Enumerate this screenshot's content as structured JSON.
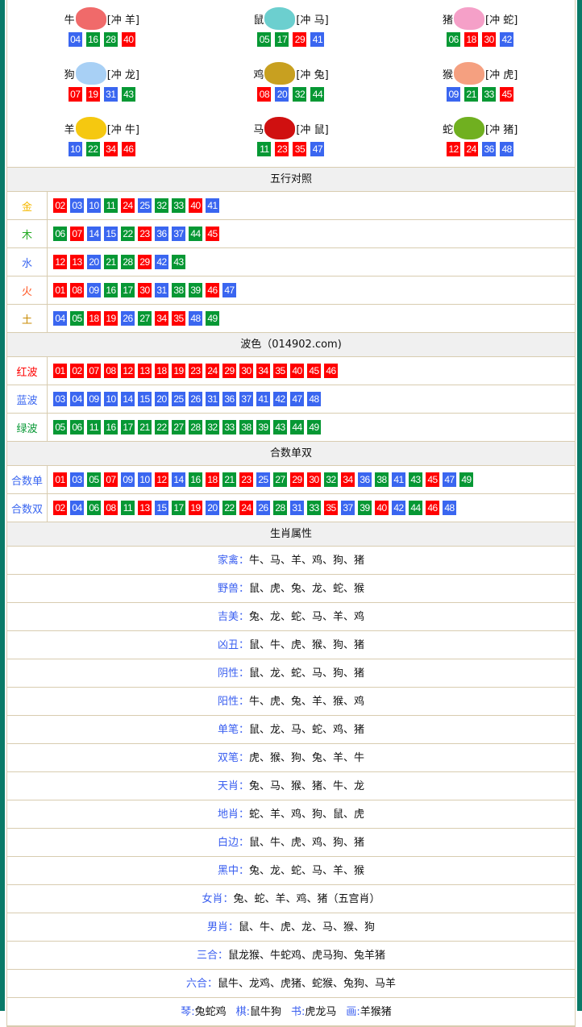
{
  "colors": {
    "red": "#ff0000",
    "blue": "#3a66f0",
    "green": "#069834"
  },
  "waves": {
    "red": [
      "01",
      "02",
      "07",
      "08",
      "12",
      "13",
      "18",
      "19",
      "23",
      "24",
      "29",
      "30",
      "34",
      "35",
      "40",
      "45",
      "46"
    ],
    "blue": [
      "03",
      "04",
      "09",
      "10",
      "14",
      "15",
      "20",
      "25",
      "26",
      "31",
      "36",
      "37",
      "41",
      "42",
      "47",
      "48"
    ],
    "green": [
      "05",
      "06",
      "11",
      "16",
      "17",
      "21",
      "22",
      "27",
      "28",
      "32",
      "33",
      "38",
      "39",
      "43",
      "44",
      "49"
    ]
  },
  "zodiac": [
    {
      "name": "牛",
      "clash": "[冲 羊]",
      "icon": "ox-icon",
      "color": "#f06a6a",
      "nums": [
        "04",
        "16",
        "28",
        "40"
      ]
    },
    {
      "name": "鼠",
      "clash": "[冲 马]",
      "icon": "rat-icon",
      "color": "#6ccfcf",
      "nums": [
        "05",
        "17",
        "29",
        "41"
      ]
    },
    {
      "name": "猪",
      "clash": "[冲 蛇]",
      "icon": "pig-icon",
      "color": "#f5a0c8",
      "nums": [
        "06",
        "18",
        "30",
        "42"
      ]
    },
    {
      "name": "狗",
      "clash": "[冲 龙]",
      "icon": "dog-icon",
      "color": "#a8d0f5",
      "nums": [
        "07",
        "19",
        "31",
        "43"
      ]
    },
    {
      "name": "鸡",
      "clash": "[冲 兔]",
      "icon": "rooster-icon",
      "color": "#c8a020",
      "nums": [
        "08",
        "20",
        "32",
        "44"
      ]
    },
    {
      "name": "猴",
      "clash": "[冲 虎]",
      "icon": "monkey-icon",
      "color": "#f5a080",
      "nums": [
        "09",
        "21",
        "33",
        "45"
      ]
    },
    {
      "name": "羊",
      "clash": "[冲 牛]",
      "icon": "goat-icon",
      "color": "#f5c810",
      "nums": [
        "10",
        "22",
        "34",
        "46"
      ]
    },
    {
      "name": "马",
      "clash": "[冲 鼠]",
      "icon": "horse-icon",
      "color": "#d01010",
      "nums": [
        "11",
        "23",
        "35",
        "47"
      ]
    },
    {
      "name": "蛇",
      "clash": "[冲 猪]",
      "icon": "snake-icon",
      "color": "#70b020",
      "nums": [
        "12",
        "24",
        "36",
        "48"
      ]
    }
  ],
  "wuxing": {
    "title": "五行对照",
    "rows": [
      {
        "label": "金",
        "color": "#f5b800",
        "nums": [
          "02",
          "03",
          "10",
          "11",
          "24",
          "25",
          "32",
          "33",
          "40",
          "41"
        ]
      },
      {
        "label": "木",
        "color": "#22aa22",
        "nums": [
          "06",
          "07",
          "14",
          "15",
          "22",
          "23",
          "36",
          "37",
          "44",
          "45"
        ]
      },
      {
        "label": "水",
        "color": "#3a66f0",
        "nums": [
          "12",
          "13",
          "20",
          "21",
          "28",
          "29",
          "42",
          "43"
        ]
      },
      {
        "label": "火",
        "color": "#ff5522",
        "nums": [
          "01",
          "08",
          "09",
          "16",
          "17",
          "30",
          "31",
          "38",
          "39",
          "46",
          "47"
        ]
      },
      {
        "label": "土",
        "color": "#c88a00",
        "nums": [
          "04",
          "05",
          "18",
          "19",
          "26",
          "27",
          "34",
          "35",
          "48",
          "49"
        ]
      }
    ]
  },
  "bose": {
    "title": "波色（014902.com)",
    "rows": [
      {
        "label": "红波",
        "color": "#ff0000",
        "nums": [
          "01",
          "02",
          "07",
          "08",
          "12",
          "13",
          "18",
          "19",
          "23",
          "24",
          "29",
          "30",
          "34",
          "35",
          "40",
          "45",
          "46"
        ]
      },
      {
        "label": "蓝波",
        "color": "#3a66f0",
        "nums": [
          "03",
          "04",
          "09",
          "10",
          "14",
          "15",
          "20",
          "25",
          "26",
          "31",
          "36",
          "37",
          "41",
          "42",
          "47",
          "48"
        ]
      },
      {
        "label": "绿波",
        "color": "#069834",
        "nums": [
          "05",
          "06",
          "11",
          "16",
          "17",
          "21",
          "22",
          "27",
          "28",
          "32",
          "33",
          "38",
          "39",
          "43",
          "44",
          "49"
        ]
      }
    ]
  },
  "heshu": {
    "title": "合数单双",
    "rows": [
      {
        "label": "合数单",
        "color": "#3a66f0",
        "nums": [
          "01",
          "03",
          "05",
          "07",
          "09",
          "10",
          "12",
          "14",
          "16",
          "18",
          "21",
          "23",
          "25",
          "27",
          "29",
          "30",
          "32",
          "34",
          "36",
          "38",
          "41",
          "43",
          "45",
          "47",
          "49"
        ]
      },
      {
        "label": "合数双",
        "color": "#3a66f0",
        "nums": [
          "02",
          "04",
          "06",
          "08",
          "11",
          "13",
          "15",
          "17",
          "19",
          "20",
          "22",
          "24",
          "26",
          "28",
          "31",
          "33",
          "35",
          "37",
          "39",
          "40",
          "42",
          "44",
          "46",
          "48"
        ]
      }
    ]
  },
  "attrs": {
    "title": "生肖属性",
    "rows": [
      {
        "k": "家禽：",
        "v": "牛、马、羊、鸡、狗、猪"
      },
      {
        "k": "野兽：",
        "v": "鼠、虎、兔、龙、蛇、猴"
      },
      {
        "k": "吉美：",
        "v": "兔、龙、蛇、马、羊、鸡"
      },
      {
        "k": "凶丑：",
        "v": "鼠、牛、虎、猴、狗、猪"
      },
      {
        "k": "阴性：",
        "v": "鼠、龙、蛇、马、狗、猪"
      },
      {
        "k": "阳性：",
        "v": "牛、虎、兔、羊、猴、鸡"
      },
      {
        "k": "单笔：",
        "v": "鼠、龙、马、蛇、鸡、猪"
      },
      {
        "k": "双笔：",
        "v": "虎、猴、狗、兔、羊、牛"
      },
      {
        "k": "天肖：",
        "v": "兔、马、猴、猪、牛、龙"
      },
      {
        "k": "地肖：",
        "v": "蛇、羊、鸡、狗、鼠、虎"
      },
      {
        "k": "白边：",
        "v": "鼠、牛、虎、鸡、狗、猪"
      },
      {
        "k": "黑中：",
        "v": "兔、龙、蛇、马、羊、猴"
      },
      {
        "k": "女肖：",
        "v": "兔、蛇、羊、鸡、猪（五宫肖）"
      },
      {
        "k": "男肖：",
        "v": "鼠、牛、虎、龙、马、猴、狗"
      },
      {
        "k": "三合：",
        "v": "鼠龙猴、牛蛇鸡、虎马狗、兔羊猪"
      },
      {
        "k": "六合：",
        "v": "鼠牛、龙鸡、虎猪、蛇猴、兔狗、马羊"
      }
    ],
    "last": [
      {
        "k": "琴:",
        "v": "兔蛇鸡"
      },
      {
        "k": "棋:",
        "v": "鼠牛狗"
      },
      {
        "k": "书:",
        "v": "虎龙马"
      },
      {
        "k": "画:",
        "v": "羊猴猪"
      }
    ]
  }
}
